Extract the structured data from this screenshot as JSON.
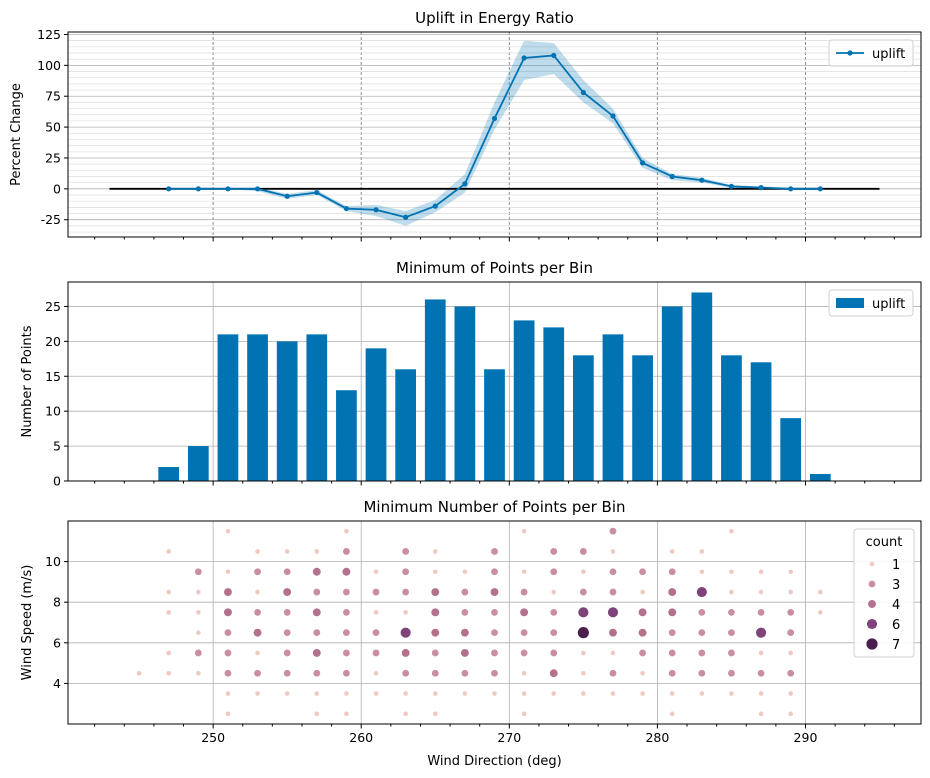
{
  "chart_data": [
    {
      "type": "line",
      "title": "Uplift in Energy Ratio",
      "xlabel": "",
      "ylabel": "Percent Change",
      "xlim": [
        240.2,
        297.8
      ],
      "ylim": [
        -39,
        127
      ],
      "yticks": [
        -25,
        0,
        25,
        50,
        75,
        100,
        125
      ],
      "grid": true,
      "legend": "top-right",
      "series": [
        {
          "name": "uplift",
          "color": "#0173b2",
          "x": [
            247,
            249,
            251,
            253,
            255,
            257,
            259,
            261,
            263,
            265,
            267,
            269,
            271,
            273,
            275,
            277,
            279,
            281,
            283,
            285,
            287,
            289,
            291
          ],
          "values": [
            0,
            0,
            0,
            0,
            -6,
            -3,
            -16,
            -17,
            -23,
            -14,
            4,
            57,
            106,
            108,
            78,
            59,
            21,
            10,
            7,
            2,
            1,
            0,
            0
          ],
          "ci_lower": [
            0,
            0,
            0,
            -2,
            -8,
            -5,
            -18,
            -22,
            -30,
            -19,
            -3,
            48,
            88,
            93,
            70,
            53,
            17,
            7,
            5,
            1,
            0,
            -1,
            -1
          ],
          "ci_upper": [
            0,
            0,
            0,
            1,
            -4,
            -1,
            -14,
            -13,
            -18,
            -9,
            12,
            70,
            120,
            118,
            88,
            65,
            25,
            12,
            9,
            3,
            2,
            1,
            1
          ]
        }
      ],
      "baseline": {
        "value": 0,
        "x_from": 243,
        "x_to": 295,
        "color": "#000000"
      }
    },
    {
      "type": "bar",
      "title": "Minimum of Points per Bin",
      "xlabel": "",
      "ylabel": "Number of Points",
      "xlim": [
        240.2,
        297.8
      ],
      "ylim": [
        0,
        28.5
      ],
      "yticks": [
        0,
        5,
        10,
        15,
        20,
        25
      ],
      "grid": true,
      "legend": "top-right",
      "series": [
        {
          "name": "uplift",
          "color": "#0173b2",
          "x": [
            245,
            247,
            249,
            251,
            253,
            255,
            257,
            259,
            261,
            263,
            265,
            267,
            269,
            271,
            273,
            275,
            277,
            279,
            281,
            283,
            285,
            287,
            289,
            291,
            293,
            295
          ],
          "values": [
            0,
            2,
            5,
            21,
            21,
            20,
            21,
            13,
            19,
            16,
            26,
            25,
            16,
            23,
            22,
            18,
            21,
            18,
            25,
            27,
            18,
            17,
            9,
            1,
            0,
            0
          ]
        }
      ]
    },
    {
      "type": "scatter",
      "title": "Minimum Number of Points per Bin",
      "xlabel": "Wind Direction (deg)",
      "ylabel": "Wind Speed (m/s)",
      "xlim": [
        240.2,
        297.8
      ],
      "ylim": [
        2,
        12
      ],
      "xticks": [
        250,
        260,
        270,
        280,
        290
      ],
      "yticks": [
        4,
        6,
        8,
        10
      ],
      "grid": true,
      "legend": "top-right",
      "legend_title": "count",
      "legend_entries": [
        {
          "label": "1",
          "color": "#eec9c0"
        },
        {
          "label": "3",
          "color": "#c98e9f"
        },
        {
          "label": "4",
          "color": "#b3718e"
        },
        {
          "label": "6",
          "color": "#7e4378"
        },
        {
          "label": "7",
          "color": "#4a1f4d"
        }
      ],
      "points": [
        [
          245,
          4.5,
          1
        ],
        [
          247,
          4.5,
          1
        ],
        [
          247,
          5.5,
          1
        ],
        [
          247,
          7.5,
          1
        ],
        [
          247,
          8.5,
          1
        ],
        [
          247,
          10.5,
          1
        ],
        [
          249,
          4.5,
          1
        ],
        [
          249,
          5.5,
          3
        ],
        [
          249,
          6.5,
          1
        ],
        [
          249,
          7.5,
          1
        ],
        [
          249,
          8.5,
          1
        ],
        [
          249,
          9.5,
          3
        ],
        [
          251,
          2.5,
          1
        ],
        [
          251,
          3.5,
          1
        ],
        [
          251,
          4.5,
          3
        ],
        [
          251,
          5.5,
          3
        ],
        [
          251,
          6.5,
          3
        ],
        [
          251,
          7.5,
          4
        ],
        [
          251,
          8.5,
          4
        ],
        [
          251,
          9.5,
          1
        ],
        [
          251,
          11.5,
          1
        ],
        [
          253,
          3.5,
          1
        ],
        [
          253,
          4.5,
          3
        ],
        [
          253,
          5.5,
          1
        ],
        [
          253,
          6.5,
          4
        ],
        [
          253,
          7.5,
          3
        ],
        [
          253,
          8.5,
          1
        ],
        [
          253,
          9.5,
          3
        ],
        [
          253,
          10.5,
          1
        ],
        [
          255,
          3.5,
          1
        ],
        [
          255,
          4.5,
          3
        ],
        [
          255,
          5.5,
          3
        ],
        [
          255,
          6.5,
          3
        ],
        [
          255,
          7.5,
          3
        ],
        [
          255,
          8.5,
          4
        ],
        [
          255,
          9.5,
          3
        ],
        [
          255,
          10.5,
          1
        ],
        [
          257,
          2.5,
          1
        ],
        [
          257,
          3.5,
          1
        ],
        [
          257,
          4.5,
          3
        ],
        [
          257,
          5.5,
          4
        ],
        [
          257,
          6.5,
          3
        ],
        [
          257,
          7.5,
          4
        ],
        [
          257,
          8.5,
          3
        ],
        [
          257,
          9.5,
          4
        ],
        [
          257,
          10.5,
          1
        ],
        [
          259,
          2.5,
          1
        ],
        [
          259,
          3.5,
          1
        ],
        [
          259,
          4.5,
          3
        ],
        [
          259,
          5.5,
          3
        ],
        [
          259,
          6.5,
          3
        ],
        [
          259,
          7.5,
          3
        ],
        [
          259,
          8.5,
          3
        ],
        [
          259,
          9.5,
          4
        ],
        [
          259,
          10.5,
          3
        ],
        [
          259,
          11.5,
          1
        ],
        [
          261,
          3.5,
          1
        ],
        [
          261,
          4.5,
          1
        ],
        [
          261,
          5.5,
          3
        ],
        [
          261,
          6.5,
          3
        ],
        [
          261,
          7.5,
          1
        ],
        [
          261,
          8.5,
          3
        ],
        [
          261,
          9.5,
          1
        ],
        [
          263,
          2.5,
          1
        ],
        [
          263,
          3.5,
          1
        ],
        [
          263,
          4.5,
          3
        ],
        [
          263,
          5.5,
          4
        ],
        [
          263,
          6.5,
          6
        ],
        [
          263,
          7.5,
          1
        ],
        [
          263,
          8.5,
          3
        ],
        [
          263,
          9.5,
          3
        ],
        [
          263,
          10.5,
          3
        ],
        [
          265,
          2.5,
          1
        ],
        [
          265,
          3.5,
          1
        ],
        [
          265,
          4.5,
          3
        ],
        [
          265,
          5.5,
          3
        ],
        [
          265,
          6.5,
          4
        ],
        [
          265,
          7.5,
          4
        ],
        [
          265,
          8.5,
          4
        ],
        [
          265,
          9.5,
          1
        ],
        [
          265,
          10.5,
          1
        ],
        [
          267,
          3.5,
          1
        ],
        [
          267,
          4.5,
          3
        ],
        [
          267,
          5.5,
          4
        ],
        [
          267,
          6.5,
          4
        ],
        [
          267,
          7.5,
          3
        ],
        [
          267,
          8.5,
          3
        ],
        [
          267,
          9.5,
          1
        ],
        [
          269,
          3.5,
          1
        ],
        [
          269,
          4.5,
          3
        ],
        [
          269,
          5.5,
          3
        ],
        [
          269,
          6.5,
          3
        ],
        [
          269,
          7.5,
          3
        ],
        [
          269,
          8.5,
          4
        ],
        [
          269,
          9.5,
          3
        ],
        [
          269,
          10.5,
          3
        ],
        [
          271,
          2.5,
          1
        ],
        [
          271,
          3.5,
          1
        ],
        [
          271,
          4.5,
          1
        ],
        [
          271,
          5.5,
          3
        ],
        [
          271,
          6.5,
          3
        ],
        [
          271,
          7.5,
          4
        ],
        [
          271,
          8.5,
          3
        ],
        [
          271,
          9.5,
          1
        ],
        [
          271,
          11.5,
          1
        ],
        [
          273,
          3.5,
          1
        ],
        [
          273,
          4.5,
          4
        ],
        [
          273,
          5.5,
          3
        ],
        [
          273,
          6.5,
          3
        ],
        [
          273,
          7.5,
          3
        ],
        [
          273,
          8.5,
          1
        ],
        [
          273,
          9.5,
          3
        ],
        [
          273,
          10.5,
          3
        ],
        [
          275,
          3.5,
          1
        ],
        [
          275,
          4.5,
          1
        ],
        [
          275,
          5.5,
          1
        ],
        [
          275,
          6.5,
          7
        ],
        [
          275,
          7.5,
          6
        ],
        [
          275,
          8.5,
          3
        ],
        [
          275,
          9.5,
          1
        ],
        [
          275,
          10.5,
          3
        ],
        [
          277,
          3.5,
          1
        ],
        [
          277,
          4.5,
          3
        ],
        [
          277,
          5.5,
          1
        ],
        [
          277,
          6.5,
          4
        ],
        [
          277,
          7.5,
          6
        ],
        [
          277,
          8.5,
          3
        ],
        [
          277,
          9.5,
          3
        ],
        [
          277,
          10.5,
          1
        ],
        [
          277,
          11.5,
          3
        ],
        [
          279,
          3.5,
          1
        ],
        [
          279,
          4.5,
          1
        ],
        [
          279,
          5.5,
          3
        ],
        [
          279,
          6.5,
          4
        ],
        [
          279,
          7.5,
          4
        ],
        [
          279,
          8.5,
          1
        ],
        [
          279,
          9.5,
          3
        ],
        [
          281,
          2.5,
          1
        ],
        [
          281,
          3.5,
          1
        ],
        [
          281,
          4.5,
          3
        ],
        [
          281,
          5.5,
          3
        ],
        [
          281,
          6.5,
          3
        ],
        [
          281,
          7.5,
          4
        ],
        [
          281,
          8.5,
          4
        ],
        [
          281,
          9.5,
          3
        ],
        [
          281,
          10.5,
          1
        ],
        [
          283,
          3.5,
          1
        ],
        [
          283,
          4.5,
          3
        ],
        [
          283,
          5.5,
          3
        ],
        [
          283,
          6.5,
          3
        ],
        [
          283,
          7.5,
          3
        ],
        [
          283,
          8.5,
          6
        ],
        [
          283,
          9.5,
          1
        ],
        [
          283,
          10.5,
          1
        ],
        [
          285,
          3.5,
          1
        ],
        [
          285,
          4.5,
          3
        ],
        [
          285,
          5.5,
          3
        ],
        [
          285,
          6.5,
          3
        ],
        [
          285,
          7.5,
          3
        ],
        [
          285,
          8.5,
          1
        ],
        [
          285,
          9.5,
          1
        ],
        [
          285,
          11.5,
          1
        ],
        [
          287,
          2.5,
          1
        ],
        [
          287,
          3.5,
          1
        ],
        [
          287,
          4.5,
          3
        ],
        [
          287,
          5.5,
          1
        ],
        [
          287,
          6.5,
          6
        ],
        [
          287,
          7.5,
          3
        ],
        [
          287,
          8.5,
          1
        ],
        [
          287,
          9.5,
          1
        ],
        [
          289,
          2.5,
          1
        ],
        [
          289,
          3.5,
          1
        ],
        [
          289,
          4.5,
          3
        ],
        [
          289,
          5.5,
          1
        ],
        [
          289,
          6.5,
          3
        ],
        [
          289,
          7.5,
          3
        ],
        [
          289,
          8.5,
          1
        ],
        [
          289,
          9.5,
          1
        ],
        [
          291,
          7.5,
          1
        ],
        [
          291,
          8.5,
          1
        ]
      ]
    }
  ]
}
